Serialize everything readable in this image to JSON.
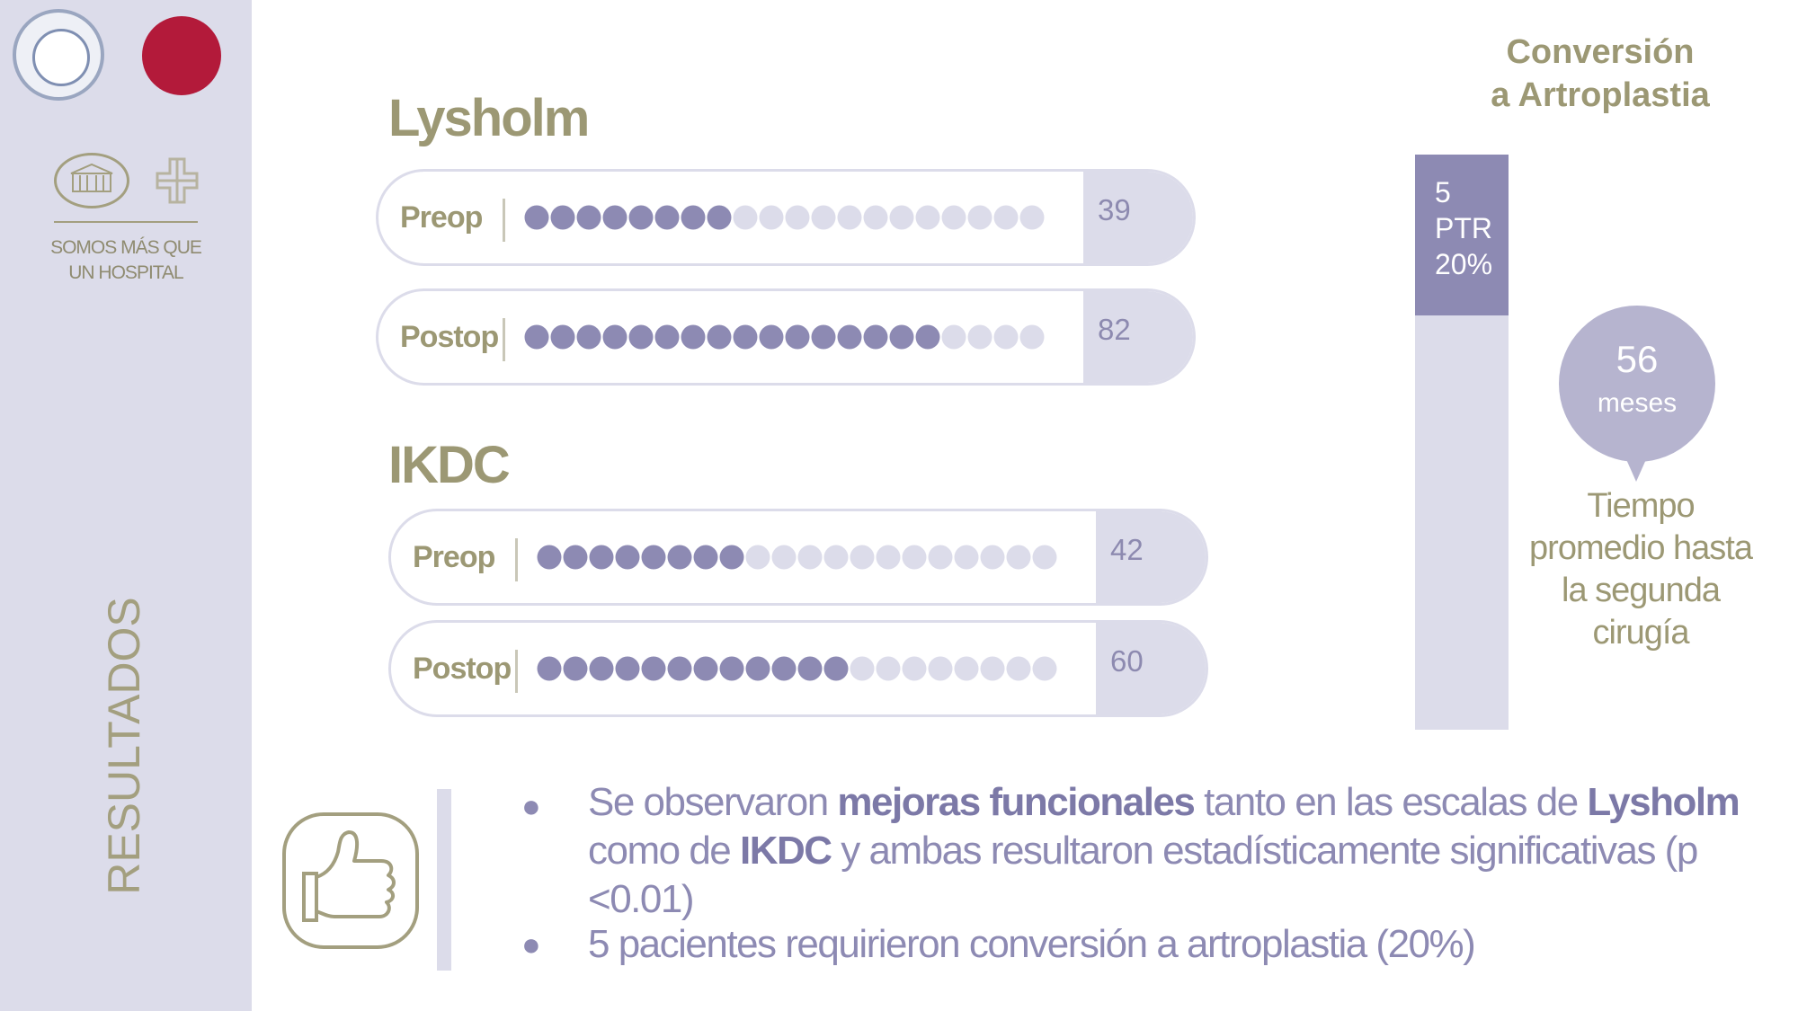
{
  "sidebar": {
    "tagline_line1": "SOMOS MÁS QUE",
    "tagline_line2": "UN HOSPITAL",
    "section_title": "RESULTADOS"
  },
  "lysholm": {
    "title": "Lysholm",
    "rows": [
      {
        "label": "Preop",
        "value": "39"
      },
      {
        "label": "Postop",
        "value": "82"
      }
    ]
  },
  "ikdc": {
    "title": "IKDC",
    "rows": [
      {
        "label": "Preop",
        "value": "42"
      },
      {
        "label": "Postop",
        "value": "60"
      }
    ]
  },
  "conversion": {
    "title_line1": "Conversión",
    "title_line2": "a Artroplastia",
    "bar_line1": "5",
    "bar_line2": "PTR",
    "bar_line3": "20%"
  },
  "bubble": {
    "number": "56",
    "unit": "meses",
    "caption_line1": "Tiempo",
    "caption_line2": "promedio hasta",
    "caption_line3": "la segunda",
    "caption_line4": "cirugía"
  },
  "bullets": {
    "b1_part1": "Se observaron ",
    "b1_bold1": "mejoras funcionales",
    "b1_part2": " tanto en las escalas de ",
    "b1_bold2": "Lysholm",
    "b1_part3": " como de ",
    "b1_bold3": "IKDC",
    "b1_part4": " y ambas resultaron estadísticamente significativas (p <0.01)",
    "b2": "5 pacientes requirieron conversión a artroplastia (20%)"
  },
  "colors": {
    "accent_purple": "#8d8ab3",
    "light_lavender": "#dcdcea",
    "olive": "#9c9874"
  },
  "icons": [
    "hospital-logo-icon",
    "cross-logo-icon",
    "thumbs-up-icon"
  ],
  "chart_data": [
    {
      "type": "bar",
      "title": "Lysholm",
      "categories": [
        "Preop",
        "Postop"
      ],
      "values": [
        39,
        82
      ],
      "dots_total": 20,
      "dots_filled": [
        8,
        16
      ]
    },
    {
      "type": "bar",
      "title": "IKDC",
      "categories": [
        "Preop",
        "Postop"
      ],
      "values": [
        42,
        60
      ],
      "dots_total": 20,
      "dots_filled": [
        8,
        12
      ]
    },
    {
      "type": "bar",
      "title": "Conversión a Artroplastia",
      "categories": [
        "PTR"
      ],
      "values": [
        20
      ],
      "unit": "%",
      "ylim": [
        0,
        100
      ]
    }
  ]
}
